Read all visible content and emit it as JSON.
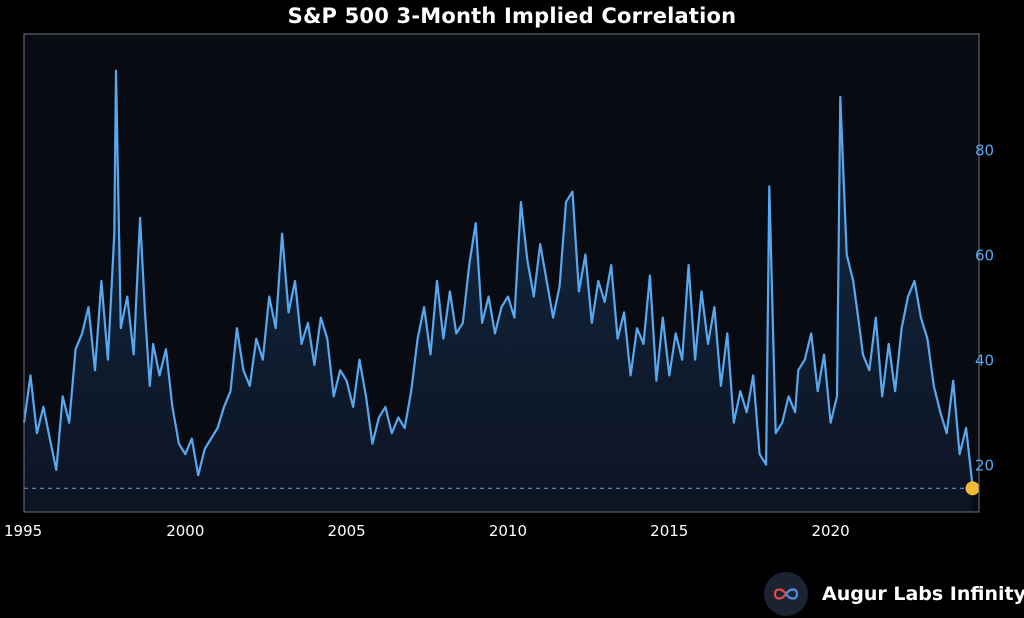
{
  "colors": {
    "background": "#000000",
    "line": "#58a8f0",
    "fill": "#0f1d33",
    "frame": "#6b7280",
    "last_point": "#f2b935",
    "ref_line": "#4a86b8"
  },
  "brand": {
    "name": "Augur Labs Infinity",
    "logo_icon": "infinity-icon"
  },
  "chart_data": {
    "type": "line",
    "title": "S&P 500 3-Month Implied Correlation",
    "xlabel": "",
    "ylabel": "",
    "xlim": [
      1995.0,
      2024.6
    ],
    "ylim": [
      11.0,
      102.0
    ],
    "x_ticks": [
      "1995",
      "2000",
      "2005",
      "2010",
      "2015",
      "2020"
    ],
    "y_ticks": [
      "20",
      "40",
      "60",
      "80"
    ],
    "y_axis_position": "right",
    "reference_line": 15.5,
    "last_point": {
      "x": 2024.4,
      "y": 15.5
    },
    "series": [
      {
        "x": [
          1995.0,
          1995.2,
          1995.4,
          1995.6,
          1995.8,
          1996.0,
          1996.2,
          1996.4,
          1996.6,
          1996.8,
          1997.0,
          1997.2,
          1997.4,
          1997.6,
          1997.8,
          1997.85,
          1998.0,
          1998.2,
          1998.4,
          1998.6,
          1998.75,
          1998.9,
          1999.0,
          1999.2,
          1999.4,
          1999.6,
          1999.8,
          2000.0,
          2000.2,
          2000.4,
          2000.6,
          2000.8,
          2001.0,
          2001.2,
          2001.4,
          2001.6,
          2001.8,
          2002.0,
          2002.2,
          2002.4,
          2002.6,
          2002.8,
          2003.0,
          2003.2,
          2003.4,
          2003.6,
          2003.8,
          2004.0,
          2004.2,
          2004.4,
          2004.6,
          2004.8,
          2005.0,
          2005.2,
          2005.4,
          2005.6,
          2005.8,
          2006.0,
          2006.2,
          2006.4,
          2006.6,
          2006.8,
          2007.0,
          2007.2,
          2007.4,
          2007.6,
          2007.8,
          2008.0,
          2008.2,
          2008.4,
          2008.6,
          2008.8,
          2009.0,
          2009.2,
          2009.4,
          2009.6,
          2009.8,
          2010.0,
          2010.2,
          2010.4,
          2010.6,
          2010.8,
          2011.0,
          2011.2,
          2011.4,
          2011.6,
          2011.8,
          2012.0,
          2012.2,
          2012.4,
          2012.6,
          2012.8,
          2013.0,
          2013.2,
          2013.4,
          2013.6,
          2013.8,
          2014.0,
          2014.2,
          2014.4,
          2014.6,
          2014.8,
          2015.0,
          2015.2,
          2015.4,
          2015.6,
          2015.8,
          2016.0,
          2016.2,
          2016.4,
          2016.6,
          2016.8,
          2017.0,
          2017.2,
          2017.4,
          2017.6,
          2017.8,
          2018.0,
          2018.1,
          2018.3,
          2018.5,
          2018.7,
          2018.9,
          2019.0,
          2019.2,
          2019.4,
          2019.6,
          2019.8,
          2020.0,
          2020.2,
          2020.3,
          2020.5,
          2020.7,
          2020.9,
          2021.0,
          2021.2,
          2021.4,
          2021.6,
          2021.8,
          2022.0,
          2022.2,
          2022.4,
          2022.6,
          2022.8,
          2023.0,
          2023.2,
          2023.4,
          2023.6,
          2023.8,
          2024.0,
          2024.2,
          2024.4
        ],
        "y": [
          28,
          37,
          26,
          31,
          25,
          19,
          33,
          28,
          42,
          45,
          50,
          38,
          55,
          40,
          64,
          95,
          46,
          52,
          41,
          67,
          49,
          35,
          43,
          37,
          42,
          31,
          24,
          22,
          25,
          18,
          23,
          25,
          27,
          31,
          34,
          46,
          38,
          35,
          44,
          40,
          52,
          46,
          64,
          49,
          55,
          43,
          47,
          39,
          48,
          44,
          33,
          38,
          36,
          31,
          40,
          33,
          24,
          29,
          31,
          26,
          29,
          27,
          34,
          44,
          50,
          41,
          55,
          44,
          53,
          45,
          47,
          58,
          66,
          47,
          52,
          45,
          50,
          52,
          48,
          70,
          59,
          52,
          62,
          55,
          48,
          54,
          70,
          72,
          53,
          60,
          47,
          55,
          51,
          58,
          44,
          49,
          37,
          46,
          43,
          56,
          36,
          48,
          37,
          45,
          40,
          58,
          40,
          53,
          43,
          50,
          35,
          45,
          28,
          34,
          30,
          37,
          22,
          20,
          73,
          26,
          28,
          33,
          30,
          38,
          40,
          45,
          34,
          41,
          28,
          33,
          90,
          60,
          55,
          46,
          41,
          38,
          48,
          33,
          43,
          34,
          46,
          52,
          55,
          48,
          44,
          35,
          30,
          26,
          36,
          22,
          27,
          16
        ]
      }
    ]
  }
}
